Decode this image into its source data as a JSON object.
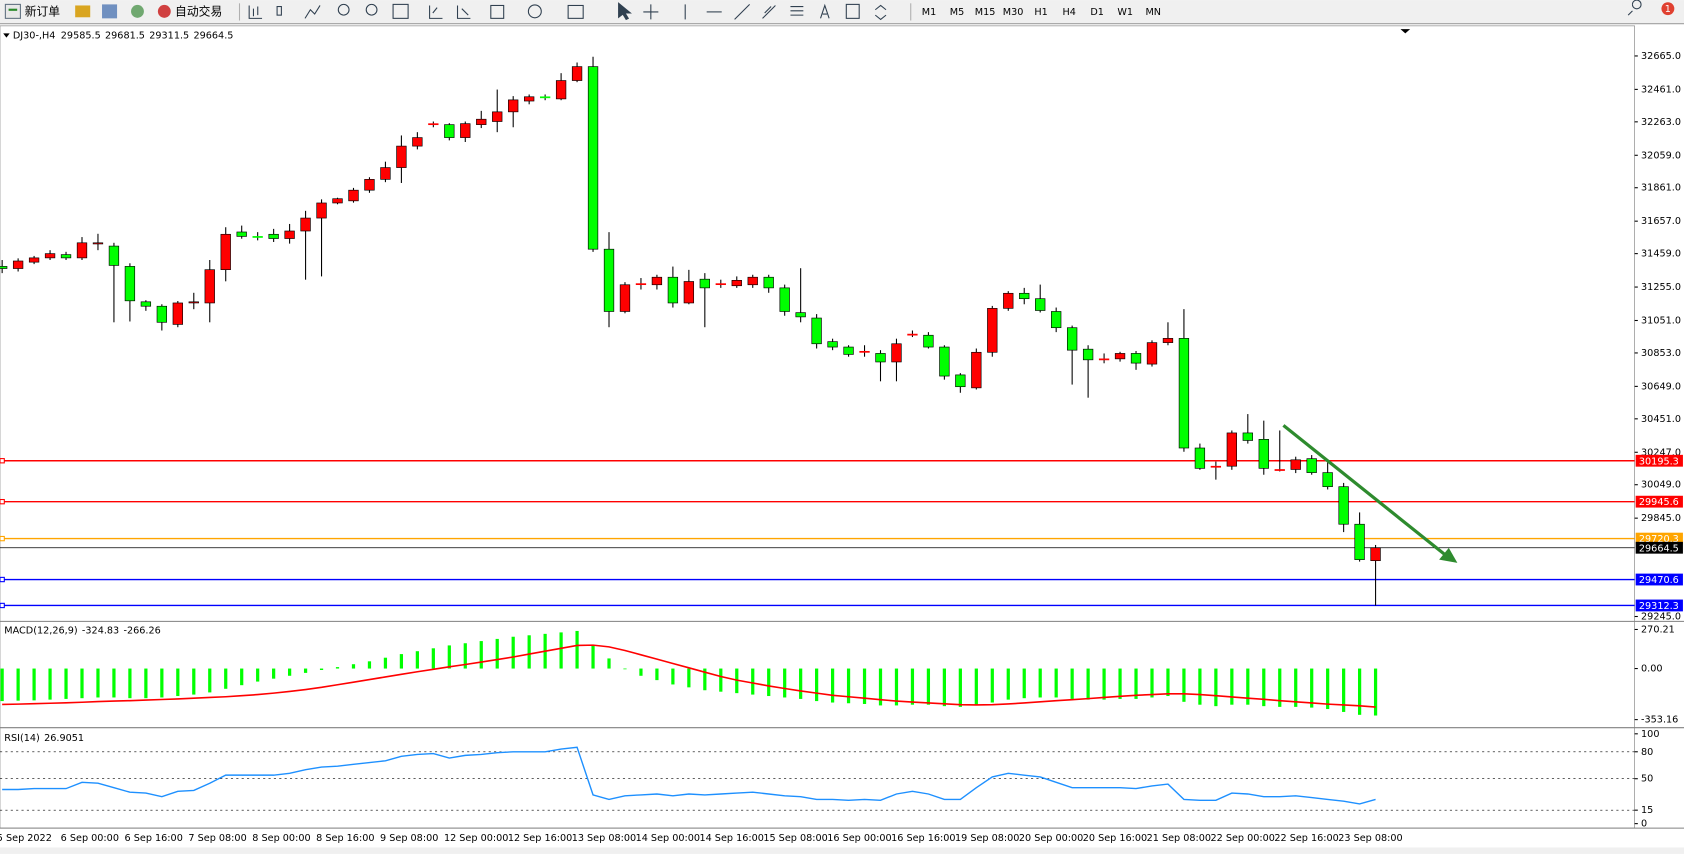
{
  "toolbar": {
    "new_order": "新订单",
    "auto_trading": "自动交易",
    "timeframes": [
      "M1",
      "M5",
      "M15",
      "M30",
      "H1",
      "H4",
      "D1",
      "W1",
      "MN"
    ],
    "notification": "1"
  },
  "chart_data": [
    {
      "type": "candlestick",
      "title": "DJ30-,H4",
      "up_color": "#ff0000",
      "down_color": "#00ff00",
      "wick_color": "#000000",
      "categories": [
        "5 Sep 2022",
        null,
        null,
        null,
        "6 Sep 00:00",
        null,
        null,
        null,
        "6 Sep 16:00",
        null,
        null,
        null,
        "7 Sep 08:00",
        null,
        null,
        null,
        "8 Sep 00:00",
        null,
        null,
        null,
        "8 Sep 16:00",
        null,
        null,
        null,
        "9 Sep 08:00",
        null,
        null,
        null,
        "12 Sep 00:00",
        null,
        null,
        null,
        "12 Sep 16:00",
        null,
        null,
        null,
        "13 Sep 08:00",
        null,
        null,
        null,
        "14 Sep 00:00",
        null,
        null,
        null,
        "14 Sep 16:00",
        null,
        null,
        null,
        "15 Sep 08:00",
        null,
        null,
        null,
        "16 Sep 00:00",
        null,
        null,
        null,
        "16 Sep 16:00",
        null,
        null,
        null,
        "19 Sep 08:00",
        null,
        null,
        null,
        "20 Sep 00:00",
        null,
        null,
        null,
        "20 Sep 16:00",
        null,
        null,
        null,
        "21 Sep 08:00",
        null,
        null,
        null,
        "22 Sep 00:00",
        null,
        null,
        null,
        "22 Sep 16:00",
        null,
        null,
        null,
        "23 Sep 08:00",
        null,
        null
      ],
      "open": [
        31381,
        31368,
        31407,
        31433,
        31453,
        31433,
        31518,
        31505,
        31381,
        31165,
        31138,
        31027,
        31158,
        31158,
        31361,
        31591,
        31564,
        31577,
        31551,
        31597,
        31676,
        31768,
        31781,
        31846,
        31912,
        31984,
        32115,
        32246,
        32246,
        32167,
        32246,
        32265,
        32324,
        32390,
        32416,
        32403,
        32515,
        32600,
        31486,
        31106,
        31276,
        31269,
        31315,
        31158,
        31303,
        31276,
        31263,
        31269,
        31315,
        31250,
        31099,
        31066,
        30922,
        30889,
        30863,
        30850,
        30798,
        30968,
        30961,
        30889,
        30719,
        30640,
        30857,
        31125,
        31217,
        31184,
        31106,
        31007,
        30876,
        30817,
        30817,
        30850,
        30785,
        30916,
        30942,
        30273,
        30162,
        30162,
        30365,
        30326,
        30142,
        30142,
        30208,
        30123,
        30037,
        29808,
        29585.5
      ],
      "high": [
        31420,
        31430,
        31445,
        31480,
        31470,
        31560,
        31580,
        31525,
        31400,
        31175,
        31150,
        31170,
        31220,
        31420,
        31620,
        31630,
        31590,
        31610,
        31640,
        31720,
        31790,
        31800,
        31860,
        31925,
        32020,
        32180,
        32200,
        32265,
        32255,
        32265,
        32330,
        32460,
        32420,
        32430,
        32430,
        32560,
        32625,
        32660,
        31590,
        31285,
        31310,
        31330,
        31380,
        31360,
        31340,
        31300,
        31320,
        31330,
        31330,
        31270,
        31370,
        31090,
        30940,
        30900,
        30900,
        30870,
        30940,
        30990,
        30980,
        30900,
        30730,
        30880,
        31140,
        31230,
        31250,
        31270,
        31130,
        31020,
        30900,
        30850,
        30860,
        30865,
        30930,
        31040,
        31120,
        30300,
        30190,
        30380,
        30480,
        30440,
        30380,
        30220,
        30230,
        30190,
        30060,
        29880,
        29681.5
      ],
      "low": [
        31340,
        31350,
        31395,
        31420,
        31420,
        31420,
        31480,
        31040,
        31045,
        31110,
        30990,
        31010,
        31120,
        31040,
        31290,
        31550,
        31540,
        31530,
        31520,
        31300,
        31320,
        31760,
        31770,
        31830,
        31895,
        31890,
        32095,
        32230,
        32150,
        32140,
        32225,
        32200,
        32230,
        32370,
        32395,
        32395,
        32505,
        31470,
        31010,
        31095,
        31240,
        31240,
        31130,
        31150,
        31010,
        31250,
        31250,
        31250,
        31220,
        31080,
        31040,
        30880,
        30870,
        30830,
        30830,
        30680,
        30680,
        30950,
        30880,
        30690,
        30610,
        30630,
        30830,
        31110,
        31150,
        31100,
        30980,
        30660,
        30580,
        30790,
        30800,
        30750,
        30770,
        30900,
        30250,
        30140,
        30080,
        30140,
        30300,
        30110,
        30130,
        30120,
        30110,
        30020,
        29760,
        29580,
        29311.5
      ],
      "close": [
        31368,
        31414,
        31433,
        31459,
        31433,
        31525,
        31525,
        31387,
        31171,
        31138,
        31040,
        31158,
        31165,
        31361,
        31577,
        31564,
        31558,
        31551,
        31597,
        31676,
        31768,
        31794,
        31846,
        31912,
        31984,
        32115,
        32167,
        32252,
        32167,
        32252,
        32279,
        32324,
        32397,
        32416,
        32410,
        32515,
        32600,
        31486,
        31106,
        31269,
        31276,
        31315,
        31158,
        31289,
        31250,
        31276,
        31296,
        31315,
        31250,
        31106,
        31073,
        30909,
        30889,
        30844,
        30863,
        30798,
        30909,
        30968,
        30889,
        30712,
        30647,
        30857,
        31125,
        31217,
        31184,
        31112,
        31007,
        30870,
        30811,
        30817,
        30850,
        30791,
        30916,
        30942,
        30273,
        30149,
        30162,
        30365,
        30319,
        30149,
        30142,
        30201,
        30123,
        30037,
        29808,
        29592,
        29664.5
      ],
      "ylim": [
        29225,
        32842
      ],
      "yticks": [
        {
          "value": 32665,
          "label": "32665.0"
        },
        {
          "value": 32461,
          "label": "32461.0"
        },
        {
          "value": 32263,
          "label": "32263.0"
        },
        {
          "value": 32059,
          "label": "32059.0"
        },
        {
          "value": 31861,
          "label": "31861.0"
        },
        {
          "value": 31657,
          "label": "31657.0"
        },
        {
          "value": 31459,
          "label": "31459.0"
        },
        {
          "value": 31255,
          "label": "31255.0"
        },
        {
          "value": 31051,
          "label": "31051.0"
        },
        {
          "value": 30853,
          "label": "30853.0"
        },
        {
          "value": 30649,
          "label": "30649.0"
        },
        {
          "value": 30451,
          "label": "30451.0"
        },
        {
          "value": 30247,
          "label": "30247.0"
        },
        {
          "value": 30049,
          "label": "30049.0"
        },
        {
          "value": 29845,
          "label": "29845.0"
        },
        {
          "value": 29245,
          "label": "29245.0"
        }
      ],
      "hlines": [
        {
          "value": 30195.3,
          "color": "#ff0000"
        },
        {
          "value": 29945.6,
          "color": "#ff0000"
        },
        {
          "value": 29720.3,
          "color": "#ffa500"
        },
        {
          "value": 29470.6,
          "color": "#0000ff"
        },
        {
          "value": 29312.3,
          "color": "#0000ff"
        }
      ],
      "last_price_color": "#000000"
    },
    {
      "type": "macd",
      "title": "MACD(12,26,9)",
      "series": [
        {
          "color": "#00ff00",
          "values": [
            -225,
            -222,
            -220,
            -215,
            -210,
            -205,
            -200,
            -200,
            -205,
            -205,
            -200,
            -190,
            -180,
            -165,
            -140,
            -115,
            -90,
            -70,
            -50,
            -30,
            -10,
            10,
            30,
            50,
            75,
            100,
            120,
            140,
            160,
            175,
            190,
            205,
            220,
            230,
            240,
            250,
            260,
            160,
            70,
            -5,
            -50,
            -80,
            -110,
            -130,
            -150,
            -160,
            -170,
            -180,
            -190,
            -200,
            -210,
            -225,
            -235,
            -240,
            -245,
            -255,
            -255,
            -250,
            -250,
            -260,
            -265,
            -255,
            -235,
            -215,
            -205,
            -200,
            -200,
            -210,
            -215,
            -215,
            -210,
            -210,
            -200,
            -190,
            -230,
            -250,
            -260,
            -250,
            -250,
            -260,
            -265,
            -265,
            -270,
            -280,
            -300,
            -320,
            -324.83
          ]
        },
        {
          "color": "#ff0000",
          "values": [
            -248,
            -246,
            -243,
            -240,
            -237,
            -233,
            -228,
            -225,
            -222,
            -218,
            -214,
            -210,
            -205,
            -200,
            -195,
            -188,
            -180,
            -170,
            -158,
            -145,
            -130,
            -112,
            -94,
            -76,
            -58,
            -40,
            -22,
            -5,
            12,
            28,
            45,
            62,
            80,
            100,
            120,
            140,
            160,
            162,
            150,
            125,
            95,
            65,
            35,
            5,
            -25,
            -55,
            -80,
            -100,
            -120,
            -138,
            -155,
            -170,
            -185,
            -195,
            -205,
            -215,
            -225,
            -232,
            -238,
            -244,
            -250,
            -252,
            -250,
            -245,
            -238,
            -230,
            -222,
            -215,
            -208,
            -200,
            -192,
            -185,
            -180,
            -175,
            -175,
            -180,
            -188,
            -196,
            -205,
            -213,
            -222,
            -230,
            -238,
            -246,
            -252,
            -258,
            -266.26
          ]
        }
      ],
      "ylim": [
        -398,
        315
      ],
      "yticks": [
        {
          "value": 270.21,
          "label": "270.21"
        },
        {
          "value": 0,
          "label": "0.00"
        },
        {
          "value": -353.16,
          "label": "-353.16"
        }
      ]
    },
    {
      "type": "line",
      "title": "RSI(14)",
      "color": "#1e90ff",
      "values": [
        38,
        38,
        39,
        39,
        39,
        46,
        45,
        40,
        35,
        34,
        30,
        36,
        37,
        45,
        54,
        54,
        54,
        54,
        56,
        60,
        63,
        64,
        66,
        68,
        70,
        75,
        77,
        78,
        73,
        76,
        77,
        79,
        80,
        80,
        80,
        83,
        85,
        32,
        27,
        31,
        32,
        33,
        31,
        33,
        32,
        33,
        34,
        35,
        33,
        31,
        30,
        27,
        27,
        26,
        27,
        26,
        33,
        36,
        33,
        27,
        27,
        40,
        52,
        56,
        54,
        52,
        46,
        40,
        40,
        40,
        40,
        39,
        42,
        44,
        27,
        26,
        26,
        34,
        33,
        30,
        30,
        31,
        29,
        27,
        25,
        22,
        26.9051
      ],
      "ylim": [
        -5,
        105
      ],
      "yticks": [
        100,
        80,
        50,
        15,
        0
      ],
      "levels": [
        80,
        50,
        15
      ]
    }
  ]
}
